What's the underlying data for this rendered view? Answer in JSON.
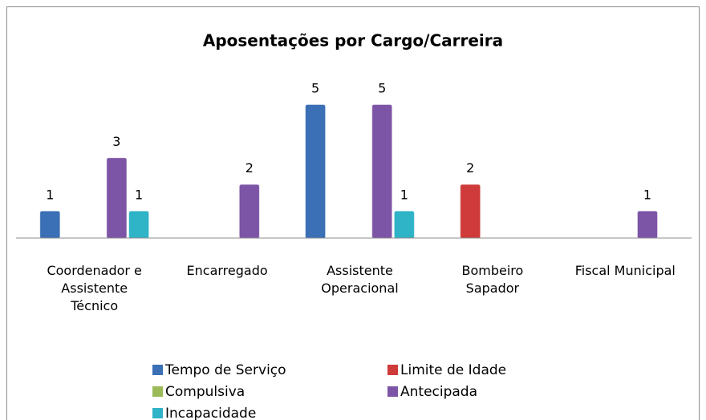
{
  "chart_data": {
    "type": "bar",
    "title": "Aposentações por Cargo/Carreira",
    "categories": [
      "Coordenador e\nAssistente\nTécnico",
      "Encarregado",
      "Assistente\nOperacional",
      "Bombeiro\nSapador",
      "Fiscal Municipal"
    ],
    "series": [
      {
        "name": "Tempo de Serviço",
        "color": "#3b6fb6",
        "values": [
          1,
          null,
          5,
          null,
          null
        ]
      },
      {
        "name": "Limite de Idade",
        "color": "#cf3a3a",
        "values": [
          null,
          null,
          null,
          2,
          null
        ]
      },
      {
        "name": "Compulsiva",
        "color": "#9bbb59",
        "values": [
          null,
          null,
          null,
          null,
          null
        ]
      },
      {
        "name": "Antecipada",
        "color": "#7d55a6",
        "values": [
          3,
          2,
          5,
          null,
          1
        ]
      },
      {
        "name": "Incapacidade",
        "color": "#2fb3c6",
        "values": [
          1,
          null,
          1,
          null,
          null
        ]
      }
    ],
    "ylim": [
      0,
      5
    ],
    "legend": "bottom"
  }
}
